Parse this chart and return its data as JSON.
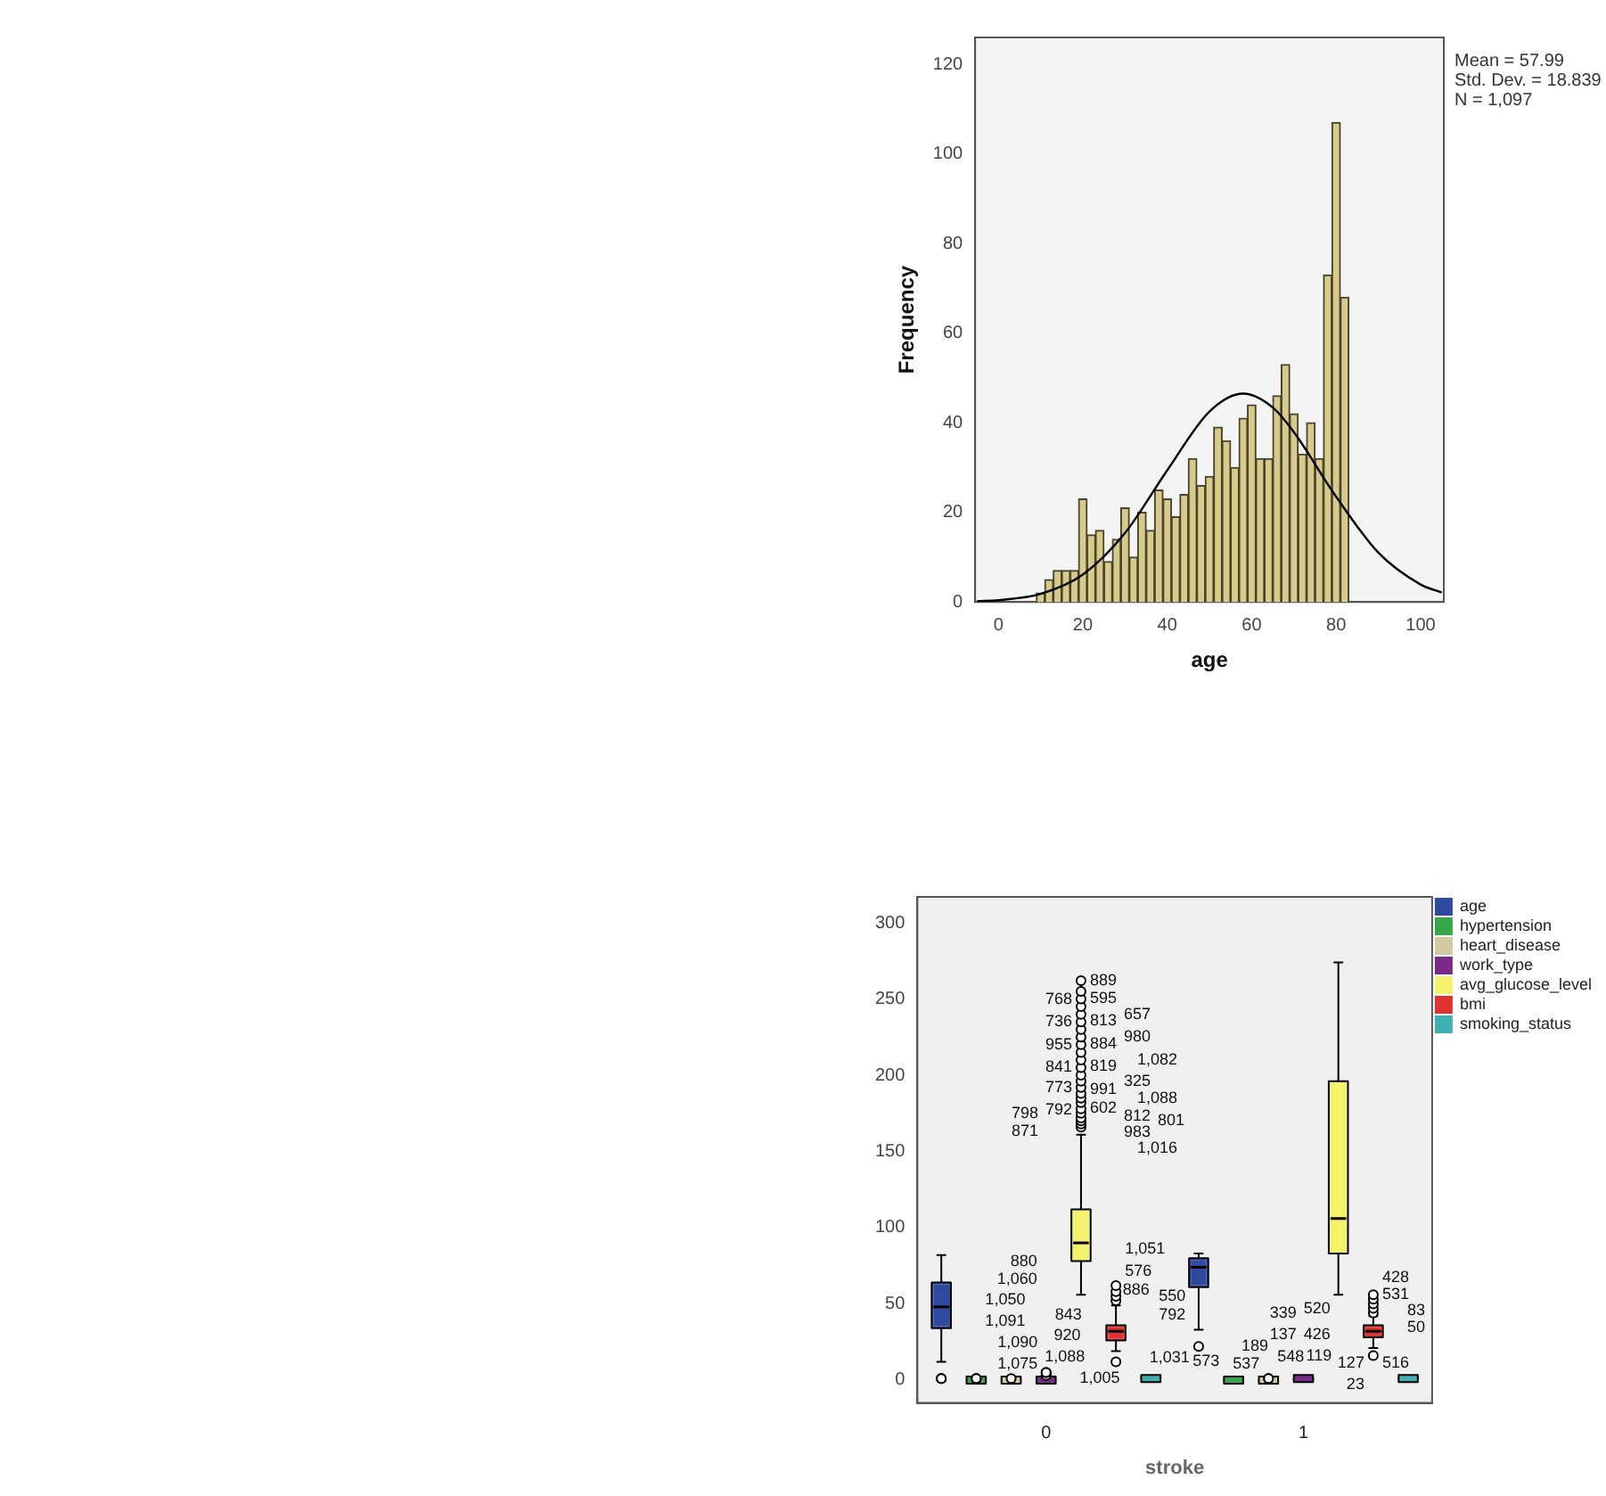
{
  "chart_data": [
    {
      "type": "histogram",
      "xlabel": "age",
      "ylabel": "Frequency",
      "color": "#d6cb8c",
      "bins": [
        9,
        11,
        13,
        15,
        17,
        19,
        21,
        23,
        25,
        27,
        29,
        31,
        33,
        35,
        37,
        39,
        41,
        43,
        45,
        47,
        49,
        51,
        53,
        55,
        57,
        59,
        61,
        63,
        65,
        67,
        69,
        71,
        73,
        75,
        77,
        79,
        81,
        83
      ],
      "values": [
        2,
        5,
        7,
        7,
        7,
        23,
        15,
        16,
        9,
        14,
        21,
        10,
        20,
        16,
        25,
        23,
        19,
        24,
        32,
        26,
        28,
        39,
        36,
        30,
        41,
        44,
        32,
        32,
        46,
        53,
        42,
        33,
        40,
        32,
        73,
        107,
        68
      ],
      "series": [
        {
          "type": "line",
          "color": "#000000",
          "x": [
            -5,
            0,
            10,
            20,
            30,
            40,
            50,
            58,
            65,
            70,
            80,
            90,
            100,
            105
          ],
          "values": [
            0.2,
            0.4,
            1.8,
            6.1,
            15.4,
            29.4,
            42.5,
            46.5,
            43.4,
            37.9,
            23.5,
            11,
            3.9,
            2.1
          ]
        }
      ],
      "xlim": [
        -5.5,
        105.5
      ],
      "xticks": [
        0,
        20,
        40,
        60,
        80,
        100
      ],
      "ylim": [
        0,
        126
      ],
      "yticks": [
        0,
        20,
        40,
        60,
        80,
        100,
        120
      ],
      "annotations": [
        "Mean = 57.99",
        "Std. Dev. = 18.839",
        "N = 1,097"
      ]
    },
    {
      "type": "box",
      "xlabel": "stroke",
      "categories": [
        "0",
        "1"
      ],
      "legend": "top right",
      "ylim": [
        -15,
        317
      ],
      "yticks": [
        0,
        50,
        100,
        150,
        200,
        250,
        300
      ],
      "series": [
        {
          "name": "age",
          "color": "#2f4a9e",
          "boxes": [
            {
              "low": 12,
              "q1": 34,
              "median": 48,
              "q3": 64,
              "high": 82,
              "outliers": [
                1,
                1,
                1
              ]
            },
            {
              "low": 33,
              "q1": 61,
              "median": 74,
              "q3": 80,
              "high": 83,
              "outliers": [
                22
              ]
            }
          ]
        },
        {
          "name": "hypertension",
          "color": "#34a84a",
          "boxes": [
            {
              "low": 0,
              "q1": 0,
              "median": 0,
              "q3": 0,
              "high": 0,
              "outliers": [
                1,
                1,
                1
              ]
            },
            {
              "low": 0,
              "q1": 0,
              "median": 0,
              "q3": 0,
              "high": 0
            }
          ]
        },
        {
          "name": "heart_disease",
          "color": "#d4caa2",
          "boxes": [
            {
              "low": 0,
              "q1": 0,
              "median": 0,
              "q3": 0,
              "high": 0,
              "outliers": [
                1
              ]
            },
            {
              "low": 0,
              "q1": 0,
              "median": 0,
              "q3": 0,
              "high": 0,
              "outliers": [
                1,
                1
              ]
            }
          ]
        },
        {
          "name": "work_type",
          "color": "#7b2a8c",
          "boxes": [
            {
              "low": 0,
              "q1": 0,
              "median": 0,
              "q3": 0,
              "high": 0,
              "outliers": [
                3,
                3,
                5,
                5,
                5
              ]
            },
            {
              "low": 0,
              "q1": 0,
              "median": 1,
              "q3": 1,
              "high": 2
            }
          ]
        },
        {
          "name": "avg_glucose_level",
          "color": "#f4f26a",
          "boxes": [
            {
              "low": 56,
              "q1": 78,
              "median": 90,
              "q3": 112,
              "high": 161,
              "outliers": [
                166,
                168,
                170,
                172,
                175,
                178,
                182,
                185,
                188,
                192,
                196,
                200,
                205,
                210,
                215,
                220,
                225,
                230,
                235,
                240,
                245,
                250,
                255,
                262
              ]
            },
            {
              "low": 56,
              "q1": 83,
              "median": 106,
              "q3": 196,
              "high": 274
            }
          ]
        },
        {
          "name": "bmi",
          "color": "#e03232",
          "boxes": [
            {
              "low": 19,
              "q1": 26,
              "median": 32,
              "q3": 36,
              "high": 49,
              "outliers": [
                12,
                52,
                55,
                58,
                62
              ]
            },
            {
              "low": 21,
              "q1": 28,
              "median": 32,
              "q3": 36,
              "high": 42,
              "outliers": [
                16,
                44,
                47,
                50,
                53,
                56
              ]
            }
          ]
        },
        {
          "name": "smoking_status",
          "color": "#3fb0b0",
          "boxes": [
            {
              "low": 1,
              "q1": 1,
              "median": 1,
              "q3": 2,
              "high": 2
            },
            {
              "low": 1,
              "q1": 1,
              "median": 1,
              "q3": 1,
              "high": 1
            }
          ]
        }
      ],
      "annotations": [
        "1,075",
        "1,090",
        "1,088",
        "1,005",
        "1,091",
        "1,050",
        "920",
        "843",
        "1,031",
        "1,060",
        "886",
        "880",
        "889",
        "595",
        "768",
        "813",
        "657",
        "736",
        "884",
        "980",
        "955",
        "819",
        "1,082",
        "841",
        "991",
        "325",
        "773",
        "602",
        "1,088",
        "792",
        "812",
        "798",
        "983",
        "801",
        "871",
        "1,016",
        "576",
        "1,051",
        "550",
        "792",
        "573",
        "189",
        "548",
        "537",
        "531",
        "428",
        "83",
        "520",
        "50",
        "516",
        "127",
        "23",
        "426",
        "137",
        "119",
        "339"
      ]
    }
  ]
}
